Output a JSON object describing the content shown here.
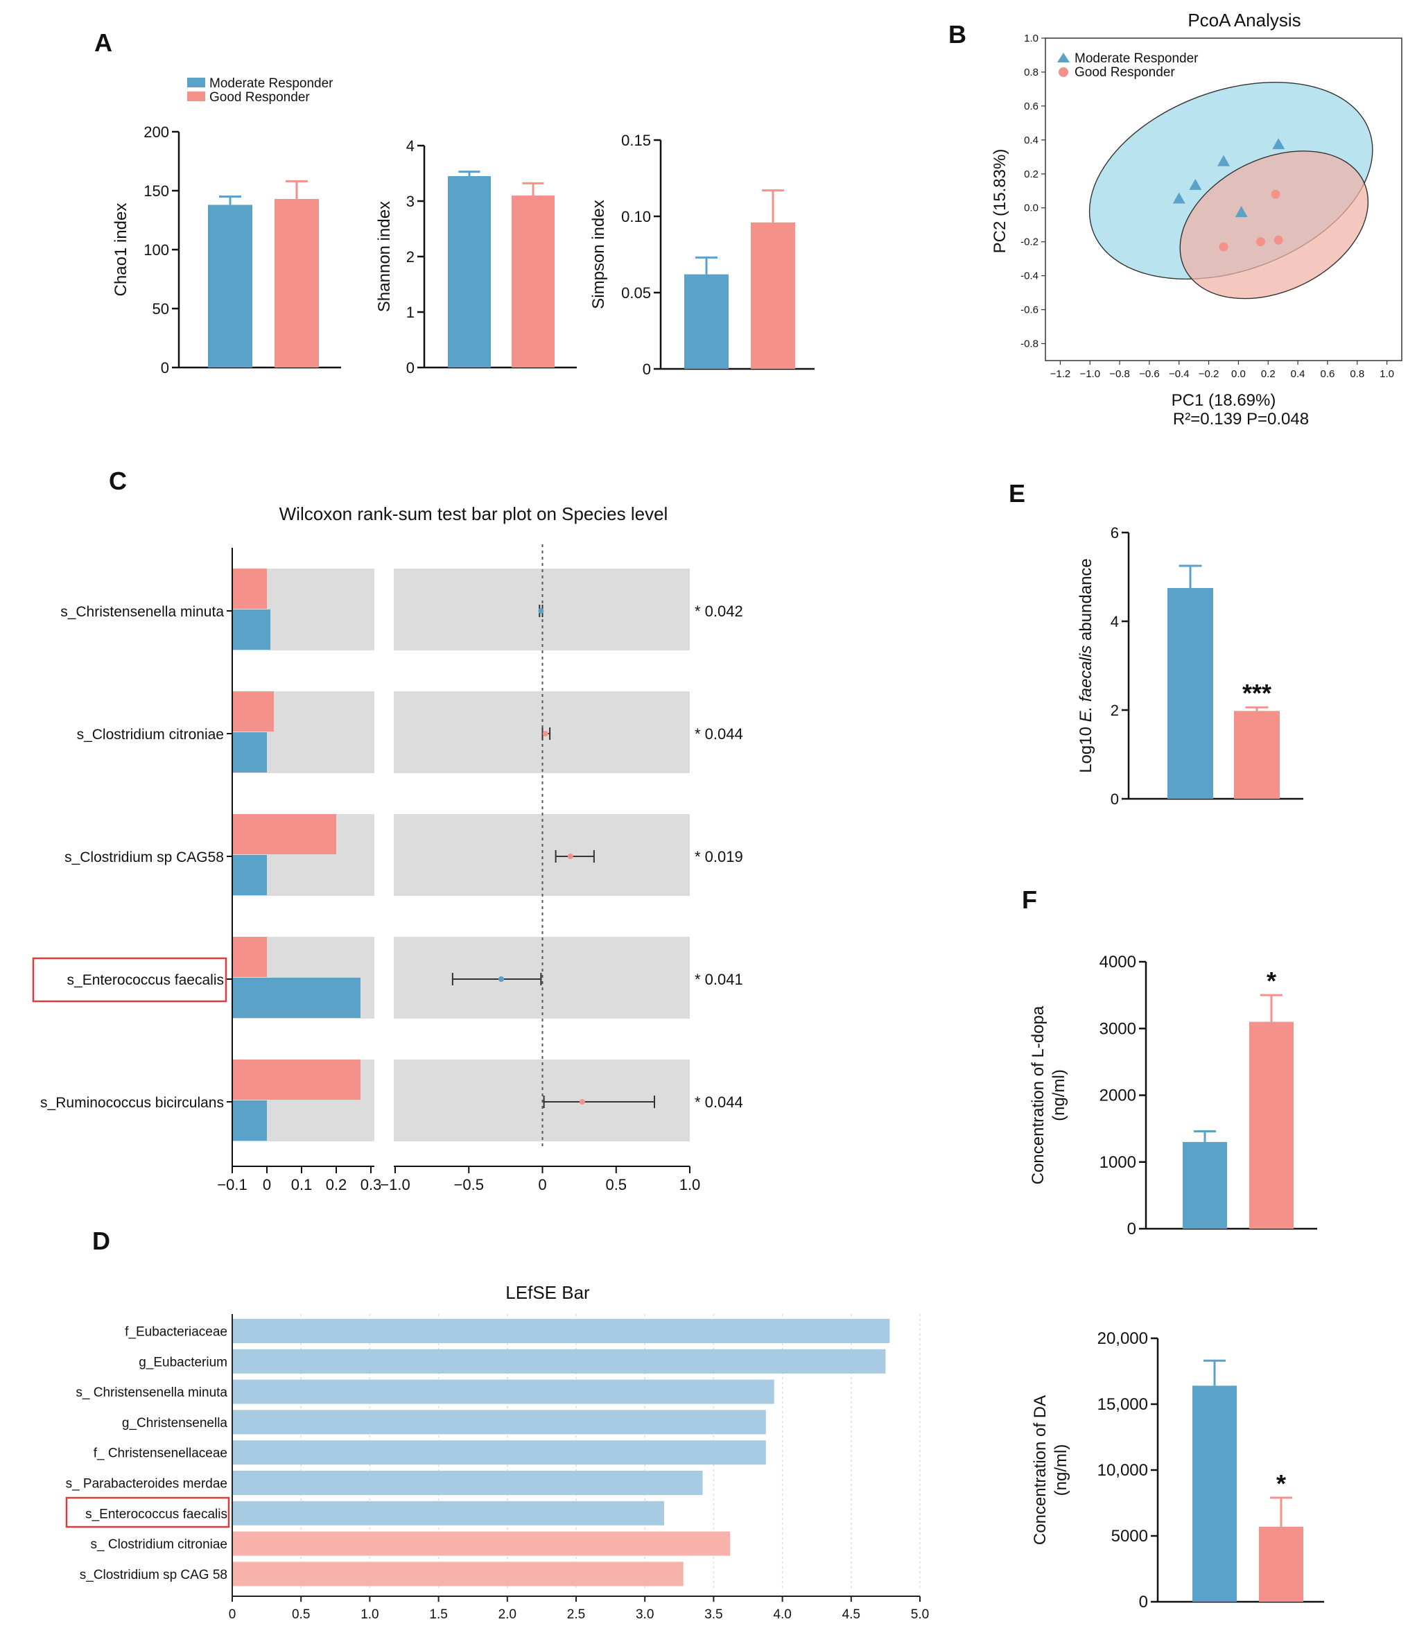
{
  "colors": {
    "moderate": "#5ba2c9",
    "good": "#f4918a",
    "moderate_light": "#a6cbe2",
    "good_light": "#f7b3ab",
    "ellipse_blue": "#b5e1ee",
    "ellipse_red": "#f0b1a6",
    "panel_bg": "#dcdcdc",
    "highlight": "#e03c3c"
  },
  "panel_labels": {
    "A": "A",
    "B": "B",
    "C": "C",
    "D": "D",
    "E": "E",
    "F": "F"
  },
  "chart_data": [
    {
      "id": "A-chao1",
      "type": "bar",
      "legend": [
        "Moderate Responder",
        "Good Responder"
      ],
      "categories": [
        "Moderate Responder",
        "Good Responder"
      ],
      "values": [
        138,
        143
      ],
      "errors": [
        7,
        15
      ],
      "ylabel": "Chao1 index",
      "ylim": [
        0,
        200
      ],
      "yticks": [
        0,
        50,
        100,
        150,
        200
      ],
      "ytick_labels": [
        "0",
        "50",
        "100",
        "150",
        "200"
      ]
    },
    {
      "id": "A-shannon",
      "type": "bar",
      "categories": [
        "Moderate Responder",
        "Good Responder"
      ],
      "values": [
        3.45,
        3.1
      ],
      "errors": [
        0.08,
        0.22
      ],
      "ylabel": "Shannon index",
      "ylim": [
        0,
        4
      ],
      "yticks": [
        0,
        1,
        2,
        3,
        4
      ],
      "ytick_labels": [
        "0",
        "1",
        "2",
        "3",
        "4"
      ]
    },
    {
      "id": "A-simpson",
      "type": "bar",
      "categories": [
        "Moderate Responder",
        "Good Responder"
      ],
      "values": [
        0.062,
        0.096
      ],
      "errors": [
        0.011,
        0.021
      ],
      "ylabel": "Simpson index",
      "ylim": [
        0,
        0.15
      ],
      "yticks": [
        0,
        0.05,
        0.1,
        0.15
      ],
      "ytick_labels": [
        "0",
        "0.05",
        "0.10",
        "0.15"
      ]
    },
    {
      "id": "B-pcoa",
      "type": "scatter",
      "title": "PcoA Analysis",
      "xlabel": "PC1 (18.69%)",
      "ylabel": "PC2 (15.83%)",
      "subtitle": "R²=0.139  P=0.048",
      "xlim": [
        -1.3,
        1.1
      ],
      "ylim": [
        -0.9,
        1.0
      ],
      "xticks": [
        -1.2,
        -1.0,
        -0.8,
        -0.6,
        -0.4,
        -0.2,
        0.0,
        0.2,
        0.4,
        0.6,
        0.8,
        1.0
      ],
      "xtick_labels": [
        "−1.2",
        "−1.0",
        "−0.8",
        "−0.6",
        "−0.4",
        "−0.2",
        "0.0",
        "0.2",
        "0.4",
        "0.6",
        "0.8",
        "1.0"
      ],
      "yticks": [
        -0.8,
        -0.6,
        -0.4,
        -0.2,
        0.0,
        0.2,
        0.4,
        0.6,
        0.8,
        1.0
      ],
      "ytick_labels": [
        "-0.8",
        "-0.6",
        "-0.4",
        "-0.2",
        "0.0",
        "0.2",
        "0.4",
        "0.6",
        "0.8",
        "1.0"
      ],
      "series": [
        {
          "name": "Moderate Responder",
          "marker": "triangle",
          "points": [
            [
              -0.4,
              0.05
            ],
            [
              -0.29,
              0.13
            ],
            [
              -0.1,
              0.27
            ],
            [
              0.02,
              -0.03
            ],
            [
              0.27,
              0.37
            ]
          ],
          "ellipse": {
            "cx": -0.05,
            "cy": 0.16,
            "rx": 0.99,
            "ry": 0.53,
            "angle": 20
          }
        },
        {
          "name": "Good Responder",
          "marker": "circle",
          "points": [
            [
              -0.1,
              -0.23
            ],
            [
              0.15,
              -0.2
            ],
            [
              0.25,
              0.08
            ],
            [
              0.27,
              -0.19
            ]
          ],
          "ellipse": {
            "cx": 0.24,
            "cy": -0.1,
            "rx": 0.67,
            "ry": 0.39,
            "angle": 26
          }
        }
      ]
    },
    {
      "id": "C-wilcoxon",
      "type": "bar",
      "title": "Wilcoxon rank-sum test bar plot on Species level",
      "categories": [
        "s_Christensenella minuta",
        "s_Clostridium citroniae",
        "s_Clostridium sp CAG58",
        "s_Enterococcus faecalis",
        "s_Ruminococcus bicirculans"
      ],
      "highlight": "s_Enterococcus faecalis",
      "series": [
        {
          "name": "Good Responder",
          "values": [
            0.0,
            0.02,
            0.2,
            0.0,
            0.27
          ]
        },
        {
          "name": "Moderate Responder",
          "values": [
            0.01,
            0.0,
            0.0,
            0.27,
            0.0
          ]
        }
      ],
      "bar_xlim": [
        -0.1,
        0.3
      ],
      "bar_xticks": [
        -0.1,
        0,
        0.1,
        0.2,
        0.3
      ],
      "bar_xtick_labels": [
        "−0.1",
        "0",
        "0.1",
        "0.2",
        "0.3"
      ],
      "diff": [
        {
          "estimate": -0.01,
          "low": -0.02,
          "high": 0.0,
          "group": "Moderate Responder"
        },
        {
          "estimate": 0.02,
          "low": 0.0,
          "high": 0.05,
          "group": "Good Responder"
        },
        {
          "estimate": 0.19,
          "low": 0.09,
          "high": 0.35,
          "group": "Good Responder"
        },
        {
          "estimate": -0.28,
          "low": -0.61,
          "high": -0.01,
          "group": "Moderate Responder"
        },
        {
          "estimate": 0.27,
          "low": 0.01,
          "high": 0.76,
          "group": "Good Responder"
        }
      ],
      "diff_xlim": [
        -1.0,
        1.0
      ],
      "diff_xticks": [
        -1.0,
        -0.5,
        0,
        0.5,
        1.0
      ],
      "diff_xtick_labels": [
        "−1.0",
        "−0.5",
        "0",
        "0.5",
        "1.0"
      ],
      "pvalues": [
        "* 0.042",
        "* 0.044",
        "* 0.019",
        "* 0.041",
        "* 0.044"
      ]
    },
    {
      "id": "D-lefse",
      "type": "bar",
      "title": "LEfSE Bar",
      "categories": [
        "f_Eubacteriaceae",
        "g_Eubacterium",
        "s_ Christensenella minuta",
        "g_Christensenella",
        "f_ Christensenellaceae",
        "s_ Parabacteroides merdae",
        "s_Enterococcus faecalis",
        "s_ Clostridium citroniae",
        "s_Clostridium sp CAG 58"
      ],
      "values": [
        4.78,
        4.75,
        3.94,
        3.88,
        3.88,
        3.42,
        3.14,
        3.62,
        3.28
      ],
      "groups": [
        "moderate",
        "moderate",
        "moderate",
        "moderate",
        "moderate",
        "moderate",
        "moderate",
        "good",
        "good"
      ],
      "highlight": "s_Enterococcus faecalis",
      "xlim": [
        0,
        5.0
      ],
      "xticks": [
        0,
        0.5,
        1.0,
        1.5,
        2.0,
        2.5,
        3.0,
        3.5,
        4.0,
        4.5,
        5.0
      ],
      "xtick_labels": [
        "0",
        "0.5",
        "1.0",
        "1.5",
        "2.0",
        "2.5",
        "3.0",
        "3.5",
        "4.0",
        "4.5",
        "5.0"
      ]
    },
    {
      "id": "E-efaecalis",
      "type": "bar",
      "categories": [
        "Moderate Responder",
        "Good Responder"
      ],
      "values": [
        4.75,
        1.98
      ],
      "errors": [
        0.5,
        0.08
      ],
      "ylabel_prefix": "Log10 ",
      "ylabel_italic": "E. faecalis",
      "ylabel_suffix": " abundance",
      "ylim": [
        0,
        6
      ],
      "yticks": [
        0,
        2,
        4,
        6
      ],
      "ytick_labels": [
        "0",
        "2",
        "4",
        "6"
      ],
      "significance": "***"
    },
    {
      "id": "F-ldopa",
      "type": "bar",
      "categories": [
        "Moderate Responder",
        "Good Responder"
      ],
      "values": [
        1300,
        3100
      ],
      "errors": [
        160,
        400
      ],
      "ylabel_line1": "Concentration of L-dopa",
      "ylabel_line2": "(ng/ml)",
      "ylim": [
        0,
        4000
      ],
      "yticks": [
        0,
        1000,
        2000,
        3000,
        4000
      ],
      "ytick_labels": [
        "0",
        "1000",
        "2000",
        "3000",
        "4000"
      ],
      "significance": "*"
    },
    {
      "id": "F-da",
      "type": "bar",
      "categories": [
        "Moderate Responder",
        "Good Responder"
      ],
      "values": [
        16400,
        5700
      ],
      "errors": [
        1900,
        2200
      ],
      "ylabel_line1": "Concentration of DA",
      "ylabel_line2": "(ng/ml)",
      "ylim": [
        0,
        20000
      ],
      "yticks": [
        0,
        5000,
        10000,
        15000,
        20000
      ],
      "ytick_labels": [
        "0",
        "5000",
        "10,000",
        "15,000",
        "20,000"
      ],
      "significance": "*"
    }
  ]
}
